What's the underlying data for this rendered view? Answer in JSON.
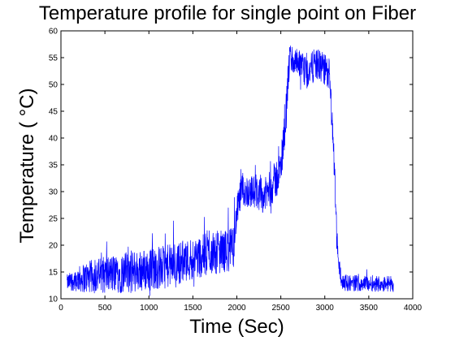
{
  "chart_data": {
    "type": "line",
    "title": "Temperature profile for single point on Fiber",
    "xlabel": "Time (Sec)",
    "ylabel": "Temperature ( °C)",
    "xlim": [
      0,
      4000
    ],
    "ylim": [
      10,
      60
    ],
    "xticks": [
      0,
      500,
      1000,
      1500,
      2000,
      2500,
      3000,
      3500,
      4000
    ],
    "yticks": [
      10,
      15,
      20,
      25,
      30,
      35,
      40,
      45,
      50,
      55,
      60
    ],
    "grid": false,
    "series": [
      {
        "color": "#0000ff",
        "x_range": [
          70,
          3780
        ],
        "profile": [
          {
            "x": 70,
            "mean": 13.0,
            "spread": 1.5
          },
          {
            "x": 150,
            "mean": 13.5,
            "spread": 2.0
          },
          {
            "x": 300,
            "mean": 14.0,
            "spread": 3.0
          },
          {
            "x": 500,
            "mean": 14.5,
            "spread": 3.5
          },
          {
            "x": 800,
            "mean": 15.0,
            "spread": 4.0
          },
          {
            "x": 1000,
            "mean": 15.5,
            "spread": 4.0
          },
          {
            "x": 1200,
            "mean": 16.0,
            "spread": 4.0
          },
          {
            "x": 1500,
            "mean": 17.5,
            "spread": 4.0
          },
          {
            "x": 1700,
            "mean": 18.5,
            "spread": 4.0
          },
          {
            "x": 1900,
            "mean": 19.0,
            "spread": 4.0
          },
          {
            "x": 1960,
            "mean": 19.5,
            "spread": 4.0
          },
          {
            "x": 2000,
            "mean": 26.0,
            "spread": 3.0
          },
          {
            "x": 2050,
            "mean": 30.0,
            "spread": 3.0
          },
          {
            "x": 2200,
            "mean": 30.0,
            "spread": 3.0
          },
          {
            "x": 2300,
            "mean": 29.0,
            "spread": 3.0
          },
          {
            "x": 2400,
            "mean": 31.0,
            "spread": 3.5
          },
          {
            "x": 2500,
            "mean": 34.0,
            "spread": 4.0
          },
          {
            "x": 2560,
            "mean": 45.0,
            "spread": 4.0
          },
          {
            "x": 2600,
            "mean": 55.0,
            "spread": 3.0
          },
          {
            "x": 2800,
            "mean": 52.0,
            "spread": 3.0
          },
          {
            "x": 2900,
            "mean": 54.0,
            "spread": 3.0
          },
          {
            "x": 3050,
            "mean": 52.0,
            "spread": 3.0
          },
          {
            "x": 3100,
            "mean": 38.0,
            "spread": 3.0
          },
          {
            "x": 3150,
            "mean": 17.0,
            "spread": 2.5
          },
          {
            "x": 3200,
            "mean": 13.0,
            "spread": 1.5
          },
          {
            "x": 3780,
            "mean": 12.8,
            "spread": 1.5
          }
        ]
      }
    ]
  }
}
